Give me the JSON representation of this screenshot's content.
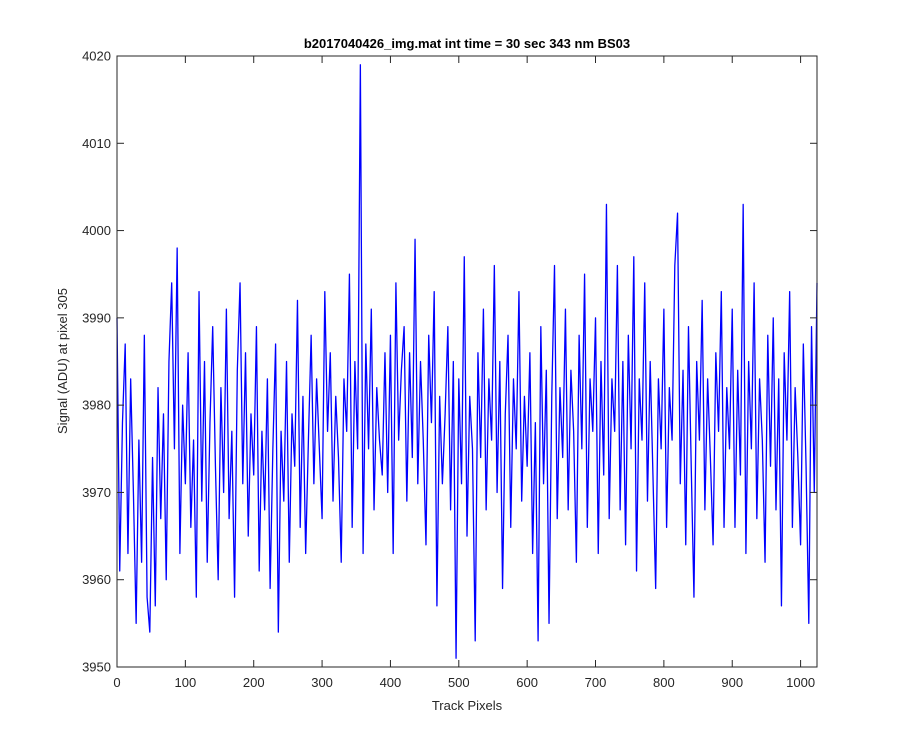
{
  "chart_data": {
    "type": "line",
    "title": "b2017040426_img.mat int time = 30 sec  343 nm BS03",
    "xlabel": "Track Pixels",
    "ylabel": "Signal (ADU) at pixel 305",
    "xlim": [
      0,
      1024
    ],
    "ylim": [
      3950,
      4020
    ],
    "x_ticks": [
      0,
      100,
      200,
      300,
      400,
      500,
      600,
      700,
      800,
      900,
      1000
    ],
    "x_tick_labels": [
      "0",
      "100",
      "200",
      "300",
      "400",
      "500",
      "600",
      "700",
      "800",
      "900",
      "1000"
    ],
    "y_ticks": [
      3950,
      3960,
      3970,
      3980,
      3990,
      4000,
      4010,
      4020
    ],
    "y_tick_labels": [
      "3950",
      "3960",
      "3970",
      "3980",
      "3990",
      "4000",
      "4010",
      "4020"
    ],
    "grid": false,
    "line_color": "#0000ff",
    "series": [
      {
        "points": [
          [
            0,
            3990
          ],
          [
            4,
            3961
          ],
          [
            8,
            3978
          ],
          [
            12,
            3987
          ],
          [
            16,
            3963
          ],
          [
            20,
            3983
          ],
          [
            24,
            3970
          ],
          [
            28,
            3955
          ],
          [
            32,
            3976
          ],
          [
            36,
            3962
          ],
          [
            40,
            3988
          ],
          [
            44,
            3958
          ],
          [
            48,
            3954
          ],
          [
            52,
            3974
          ],
          [
            56,
            3957
          ],
          [
            60,
            3982
          ],
          [
            64,
            3967
          ],
          [
            68,
            3979
          ],
          [
            72,
            3960
          ],
          [
            76,
            3985
          ],
          [
            80,
            3994
          ],
          [
            84,
            3975
          ],
          [
            88,
            3998
          ],
          [
            92,
            3963
          ],
          [
            96,
            3980
          ],
          [
            100,
            3971
          ],
          [
            104,
            3986
          ],
          [
            108,
            3966
          ],
          [
            112,
            3976
          ],
          [
            116,
            3958
          ],
          [
            120,
            3993
          ],
          [
            124,
            3969
          ],
          [
            128,
            3985
          ],
          [
            132,
            3962
          ],
          [
            136,
            3978
          ],
          [
            140,
            3989
          ],
          [
            144,
            3973
          ],
          [
            148,
            3960
          ],
          [
            152,
            3982
          ],
          [
            156,
            3970
          ],
          [
            160,
            3991
          ],
          [
            164,
            3967
          ],
          [
            168,
            3977
          ],
          [
            172,
            3958
          ],
          [
            176,
            3984
          ],
          [
            180,
            3994
          ],
          [
            184,
            3971
          ],
          [
            188,
            3986
          ],
          [
            192,
            3965
          ],
          [
            196,
            3979
          ],
          [
            200,
            3972
          ],
          [
            204,
            3989
          ],
          [
            208,
            3961
          ],
          [
            212,
            3977
          ],
          [
            216,
            3968
          ],
          [
            220,
            3983
          ],
          [
            224,
            3959
          ],
          [
            228,
            3975
          ],
          [
            232,
            3987
          ],
          [
            236,
            3954
          ],
          [
            240,
            3977
          ],
          [
            244,
            3969
          ],
          [
            248,
            3985
          ],
          [
            252,
            3962
          ],
          [
            256,
            3979
          ],
          [
            260,
            3973
          ],
          [
            264,
            3992
          ],
          [
            268,
            3966
          ],
          [
            272,
            3981
          ],
          [
            276,
            3963
          ],
          [
            280,
            3976
          ],
          [
            284,
            3988
          ],
          [
            288,
            3971
          ],
          [
            292,
            3983
          ],
          [
            296,
            3975
          ],
          [
            300,
            3967
          ],
          [
            304,
            3993
          ],
          [
            308,
            3977
          ],
          [
            312,
            3986
          ],
          [
            316,
            3969
          ],
          [
            320,
            3981
          ],
          [
            324,
            3974
          ],
          [
            328,
            3962
          ],
          [
            332,
            3983
          ],
          [
            336,
            3977
          ],
          [
            340,
            3995
          ],
          [
            344,
            3966
          ],
          [
            348,
            3985
          ],
          [
            352,
            3975
          ],
          [
            356,
            4019
          ],
          [
            360,
            3963
          ],
          [
            364,
            3987
          ],
          [
            368,
            3975
          ],
          [
            372,
            3991
          ],
          [
            376,
            3968
          ],
          [
            380,
            3982
          ],
          [
            384,
            3976
          ],
          [
            388,
            3972
          ],
          [
            392,
            3986
          ],
          [
            396,
            3970
          ],
          [
            400,
            3988
          ],
          [
            404,
            3963
          ],
          [
            408,
            3994
          ],
          [
            412,
            3976
          ],
          [
            416,
            3984
          ],
          [
            420,
            3989
          ],
          [
            424,
            3969
          ],
          [
            428,
            3986
          ],
          [
            432,
            3974
          ],
          [
            436,
            3999
          ],
          [
            440,
            3971
          ],
          [
            444,
            3985
          ],
          [
            448,
            3976
          ],
          [
            452,
            3964
          ],
          [
            456,
            3988
          ],
          [
            460,
            3978
          ],
          [
            464,
            3993
          ],
          [
            468,
            3957
          ],
          [
            472,
            3981
          ],
          [
            476,
            3971
          ],
          [
            480,
            3979
          ],
          [
            484,
            3989
          ],
          [
            488,
            3968
          ],
          [
            492,
            3985
          ],
          [
            496,
            3951
          ],
          [
            500,
            3983
          ],
          [
            504,
            3971
          ],
          [
            508,
            3997
          ],
          [
            512,
            3965
          ],
          [
            516,
            3981
          ],
          [
            520,
            3975
          ],
          [
            524,
            3953
          ],
          [
            528,
            3986
          ],
          [
            532,
            3974
          ],
          [
            536,
            3991
          ],
          [
            540,
            3968
          ],
          [
            544,
            3983
          ],
          [
            548,
            3976
          ],
          [
            552,
            3996
          ],
          [
            556,
            3970
          ],
          [
            560,
            3985
          ],
          [
            564,
            3959
          ],
          [
            568,
            3979
          ],
          [
            572,
            3988
          ],
          [
            576,
            3966
          ],
          [
            580,
            3983
          ],
          [
            584,
            3975
          ],
          [
            588,
            3993
          ],
          [
            592,
            3969
          ],
          [
            596,
            3981
          ],
          [
            600,
            3973
          ],
          [
            604,
            3986
          ],
          [
            608,
            3963
          ],
          [
            612,
            3978
          ],
          [
            616,
            3953
          ],
          [
            620,
            3989
          ],
          [
            624,
            3971
          ],
          [
            628,
            3984
          ],
          [
            632,
            3955
          ],
          [
            636,
            3981
          ],
          [
            640,
            3996
          ],
          [
            644,
            3967
          ],
          [
            648,
            3982
          ],
          [
            652,
            3974
          ],
          [
            656,
            3991
          ],
          [
            660,
            3968
          ],
          [
            664,
            3984
          ],
          [
            668,
            3977
          ],
          [
            672,
            3962
          ],
          [
            676,
            3988
          ],
          [
            680,
            3975
          ],
          [
            684,
            3995
          ],
          [
            688,
            3966
          ],
          [
            692,
            3983
          ],
          [
            696,
            3977
          ],
          [
            700,
            3990
          ],
          [
            704,
            3963
          ],
          [
            708,
            3985
          ],
          [
            712,
            3972
          ],
          [
            716,
            4003
          ],
          [
            720,
            3967
          ],
          [
            724,
            3983
          ],
          [
            728,
            3977
          ],
          [
            732,
            3996
          ],
          [
            736,
            3968
          ],
          [
            740,
            3985
          ],
          [
            744,
            3964
          ],
          [
            748,
            3988
          ],
          [
            752,
            3975
          ],
          [
            756,
            3997
          ],
          [
            760,
            3961
          ],
          [
            764,
            3983
          ],
          [
            768,
            3976
          ],
          [
            772,
            3994
          ],
          [
            776,
            3969
          ],
          [
            780,
            3985
          ],
          [
            784,
            3972
          ],
          [
            788,
            3959
          ],
          [
            792,
            3983
          ],
          [
            796,
            3975
          ],
          [
            800,
            3991
          ],
          [
            804,
            3966
          ],
          [
            808,
            3982
          ],
          [
            812,
            3976
          ],
          [
            816,
            3996
          ],
          [
            820,
            4002
          ],
          [
            824,
            3971
          ],
          [
            828,
            3984
          ],
          [
            832,
            3964
          ],
          [
            836,
            3989
          ],
          [
            840,
            3973
          ],
          [
            844,
            3958
          ],
          [
            848,
            3985
          ],
          [
            852,
            3976
          ],
          [
            856,
            3992
          ],
          [
            860,
            3968
          ],
          [
            864,
            3983
          ],
          [
            868,
            3974
          ],
          [
            872,
            3964
          ],
          [
            876,
            3986
          ],
          [
            880,
            3977
          ],
          [
            884,
            3993
          ],
          [
            888,
            3966
          ],
          [
            892,
            3982
          ],
          [
            896,
            3975
          ],
          [
            900,
            3991
          ],
          [
            904,
            3966
          ],
          [
            908,
            3984
          ],
          [
            912,
            3972
          ],
          [
            916,
            4003
          ],
          [
            920,
            3963
          ],
          [
            924,
            3985
          ],
          [
            928,
            3975
          ],
          [
            932,
            3994
          ],
          [
            936,
            3967
          ],
          [
            940,
            3983
          ],
          [
            944,
            3976
          ],
          [
            948,
            3962
          ],
          [
            952,
            3988
          ],
          [
            956,
            3973
          ],
          [
            960,
            3990
          ],
          [
            964,
            3968
          ],
          [
            968,
            3983
          ],
          [
            972,
            3957
          ],
          [
            976,
            3986
          ],
          [
            980,
            3976
          ],
          [
            984,
            3993
          ],
          [
            988,
            3966
          ],
          [
            992,
            3982
          ],
          [
            996,
            3974
          ],
          [
            1000,
            3964
          ],
          [
            1004,
            3987
          ],
          [
            1008,
            3973
          ],
          [
            1012,
            3955
          ],
          [
            1016,
            3989
          ],
          [
            1020,
            3970
          ],
          [
            1024,
            3994
          ]
        ]
      }
    ]
  }
}
